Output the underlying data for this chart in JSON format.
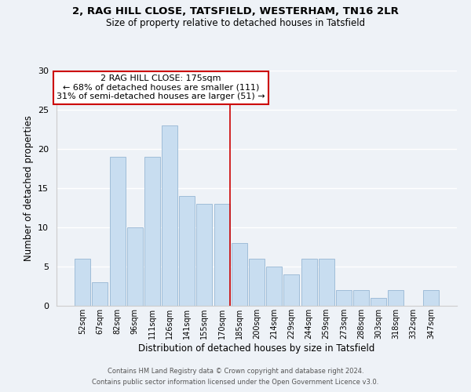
{
  "title1": "2, RAG HILL CLOSE, TATSFIELD, WESTERHAM, TN16 2LR",
  "title2": "Size of property relative to detached houses in Tatsfield",
  "xlabel": "Distribution of detached houses by size in Tatsfield",
  "ylabel": "Number of detached properties",
  "bar_labels": [
    "52sqm",
    "67sqm",
    "82sqm",
    "96sqm",
    "111sqm",
    "126sqm",
    "141sqm",
    "155sqm",
    "170sqm",
    "185sqm",
    "200sqm",
    "214sqm",
    "229sqm",
    "244sqm",
    "259sqm",
    "273sqm",
    "288sqm",
    "303sqm",
    "318sqm",
    "332sqm",
    "347sqm"
  ],
  "bar_values": [
    6,
    3,
    19,
    10,
    19,
    23,
    14,
    13,
    13,
    8,
    6,
    5,
    4,
    6,
    6,
    2,
    2,
    1,
    2,
    0,
    2
  ],
  "bar_color": "#c8ddf0",
  "bar_edge_color": "#a0bdd8",
  "reference_line_color": "#cc0000",
  "annotation_line1": "2 RAG HILL CLOSE: 175sqm",
  "annotation_line2": "← 68% of detached houses are smaller (111)",
  "annotation_line3": "31% of semi-detached houses are larger (51) →",
  "annotation_box_color": "#ffffff",
  "annotation_box_edge_color": "#cc0000",
  "ylim": [
    0,
    30
  ],
  "yticks": [
    0,
    5,
    10,
    15,
    20,
    25,
    30
  ],
  "footer_line1": "Contains HM Land Registry data © Crown copyright and database right 2024.",
  "footer_line2": "Contains public sector information licensed under the Open Government Licence v3.0.",
  "background_color": "#eef2f7",
  "grid_color": "#ffffff",
  "spine_color": "#cccccc"
}
